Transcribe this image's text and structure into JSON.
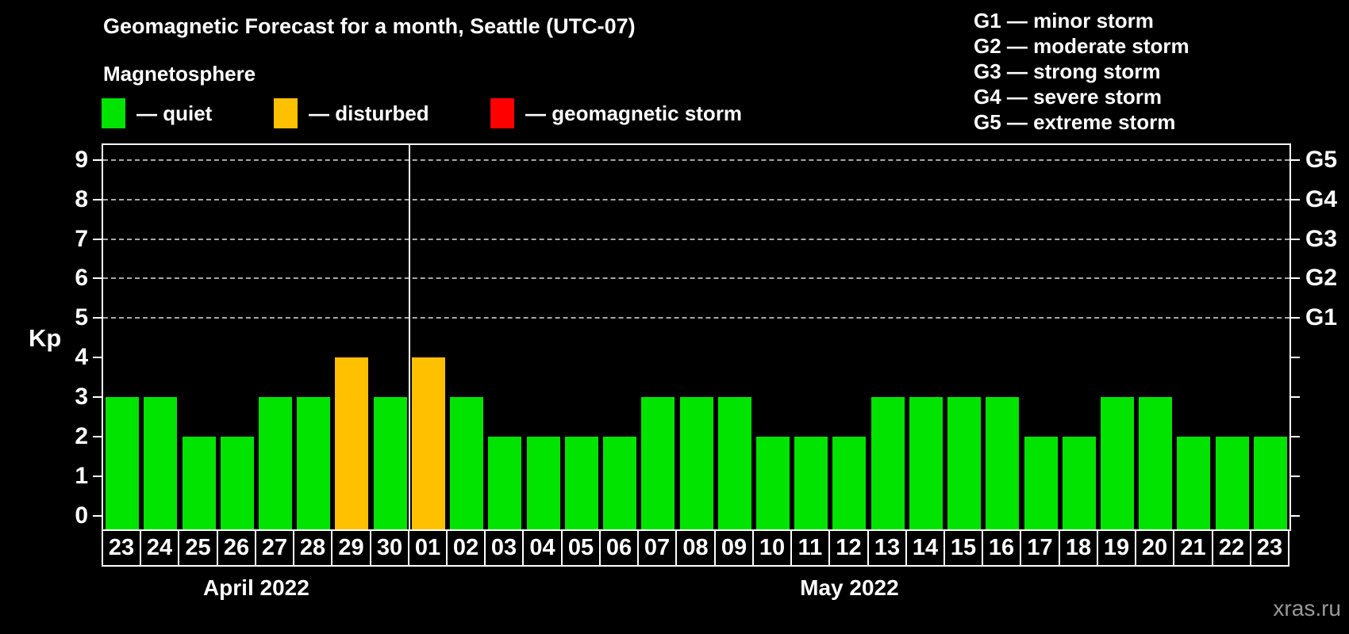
{
  "title": "Geomagnetic Forecast for a month, Seattle (UTC-07)",
  "subtitle": "Magnetosphere",
  "legend": {
    "items": [
      {
        "label": "— quiet",
        "status": "quiet",
        "color": "#00E400"
      },
      {
        "label": "— disturbed",
        "status": "disturbed",
        "color": "#FFC000"
      },
      {
        "label": "— geomagnetic storm",
        "status": "storm",
        "color": "#FF0000"
      }
    ]
  },
  "g_legend": {
    "items": [
      "G1 — minor storm",
      "G2 — moderate storm",
      "G3 — strong storm",
      "G4 — severe storm",
      "G5 — extreme storm"
    ]
  },
  "colors": {
    "quiet": "#00E400",
    "disturbed": "#FFC000",
    "storm": "#FF0000",
    "grid": "#A8A8A8",
    "axis": "#FFFFFF",
    "watermark": "#999999",
    "background": "#000000"
  },
  "chart_data": {
    "type": "bar",
    "title": "Geomagnetic Forecast for a month, Seattle (UTC-07)",
    "ylabel": "Kp",
    "ylim": [
      -0.35,
      9.38
    ],
    "y_ticks": [
      0,
      1,
      2,
      3,
      4,
      5,
      6,
      7,
      8,
      9
    ],
    "grid_dashed_at_kp": [
      5,
      6,
      7,
      8,
      9
    ],
    "grid": "dashed-horizontal-on-storm-levels",
    "legend_position": "top",
    "right_axis_labels": [
      {
        "label": "G1",
        "kp": 5
      },
      {
        "label": "G2",
        "kp": 6
      },
      {
        "label": "G3",
        "kp": 7
      },
      {
        "label": "G4",
        "kp": 8
      },
      {
        "label": "G5",
        "kp": 9
      }
    ],
    "months": [
      {
        "label": "April 2022",
        "days": [
          "23",
          "24",
          "25",
          "26",
          "27",
          "28",
          "29",
          "30"
        ],
        "values": [
          3,
          3,
          2,
          2,
          3,
          3,
          4,
          3
        ],
        "statuses": [
          "quiet",
          "quiet",
          "quiet",
          "quiet",
          "quiet",
          "quiet",
          "disturbed",
          "quiet"
        ]
      },
      {
        "label": "May 2022",
        "days": [
          "01",
          "02",
          "03",
          "04",
          "05",
          "06",
          "07",
          "08",
          "09",
          "10",
          "11",
          "12",
          "13",
          "14",
          "15",
          "16",
          "17",
          "18",
          "19",
          "20",
          "21",
          "22",
          "23"
        ],
        "values": [
          4,
          3,
          2,
          2,
          2,
          2,
          3,
          3,
          3,
          2,
          2,
          2,
          3,
          3,
          3,
          3,
          2,
          2,
          3,
          3,
          2,
          2,
          2
        ],
        "statuses": [
          "disturbed",
          "quiet",
          "quiet",
          "quiet",
          "quiet",
          "quiet",
          "quiet",
          "quiet",
          "quiet",
          "quiet",
          "quiet",
          "quiet",
          "quiet",
          "quiet",
          "quiet",
          "quiet",
          "quiet",
          "quiet",
          "quiet",
          "quiet",
          "quiet",
          "quiet",
          "quiet"
        ]
      }
    ]
  },
  "watermark": "xras.ru"
}
